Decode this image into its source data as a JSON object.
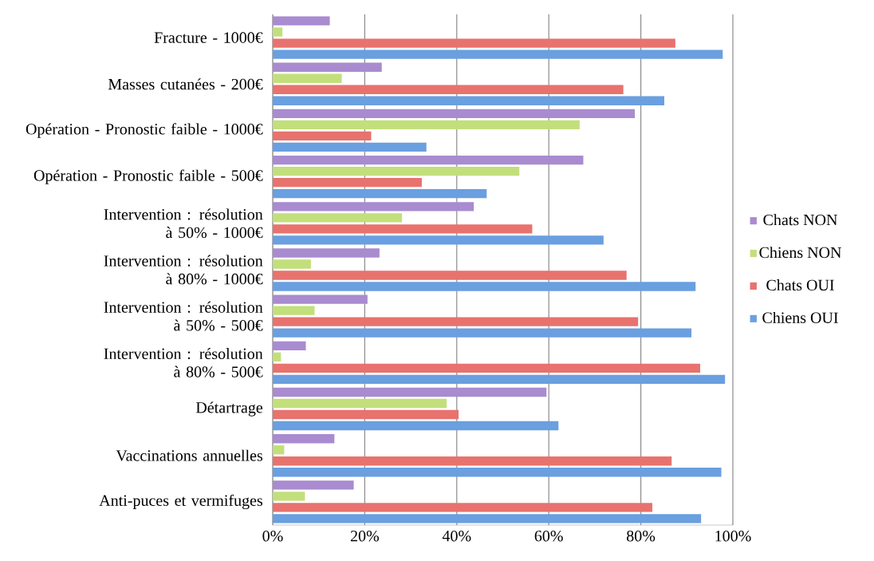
{
  "chart_data": {
    "type": "bar",
    "orientation": "horizontal",
    "categories": [
      "Fracture - 1000€",
      "Masses cutanées - 200€",
      "Opération - Pronostic faible - 1000€",
      "Opération - Pronostic faible - 500€",
      "Intervention : résolution à 50% - 1000€",
      "Intervention : résolution à 80% - 1000€",
      "Intervention : résolution à 50% - 500€",
      "Intervention : résolution à 80% - 500€",
      "Détartrage",
      "Vaccinations annuelles",
      "Anti-puces et vermifuges"
    ],
    "series": [
      {
        "name": "Chiens OUI",
        "color": "#6a9fe0",
        "values": [
          97.8,
          85.1,
          33.4,
          46.5,
          71.9,
          91.9,
          91.0,
          98.3,
          62.1,
          97.5,
          93.1
        ]
      },
      {
        "name": "Chats OUI",
        "color": "#e8726e",
        "values": [
          87.5,
          76.2,
          21.4,
          32.4,
          56.4,
          76.9,
          79.4,
          92.9,
          40.4,
          86.7,
          82.5
        ]
      },
      {
        "name": "Chiens NON",
        "color": "#c2df7c",
        "values": [
          2.1,
          15.0,
          66.7,
          53.6,
          28.1,
          8.3,
          9.1,
          1.8,
          37.8,
          2.5,
          7.0
        ]
      },
      {
        "name": "Chats NON",
        "color": "#a98bd0",
        "values": [
          12.4,
          23.7,
          78.7,
          67.5,
          43.7,
          23.2,
          20.6,
          7.2,
          59.5,
          13.4,
          17.6
        ]
      }
    ],
    "xlim": [
      0,
      100
    ],
    "xticks": [
      {
        "value": 0,
        "label": "0%"
      },
      {
        "value": 20,
        "label": "20%"
      },
      {
        "value": 40,
        "label": "40%"
      },
      {
        "value": 60,
        "label": "60%"
      },
      {
        "value": 80,
        "label": "80%"
      },
      {
        "value": 100,
        "label": "100%"
      }
    ],
    "grid": "x",
    "legend": "right"
  }
}
